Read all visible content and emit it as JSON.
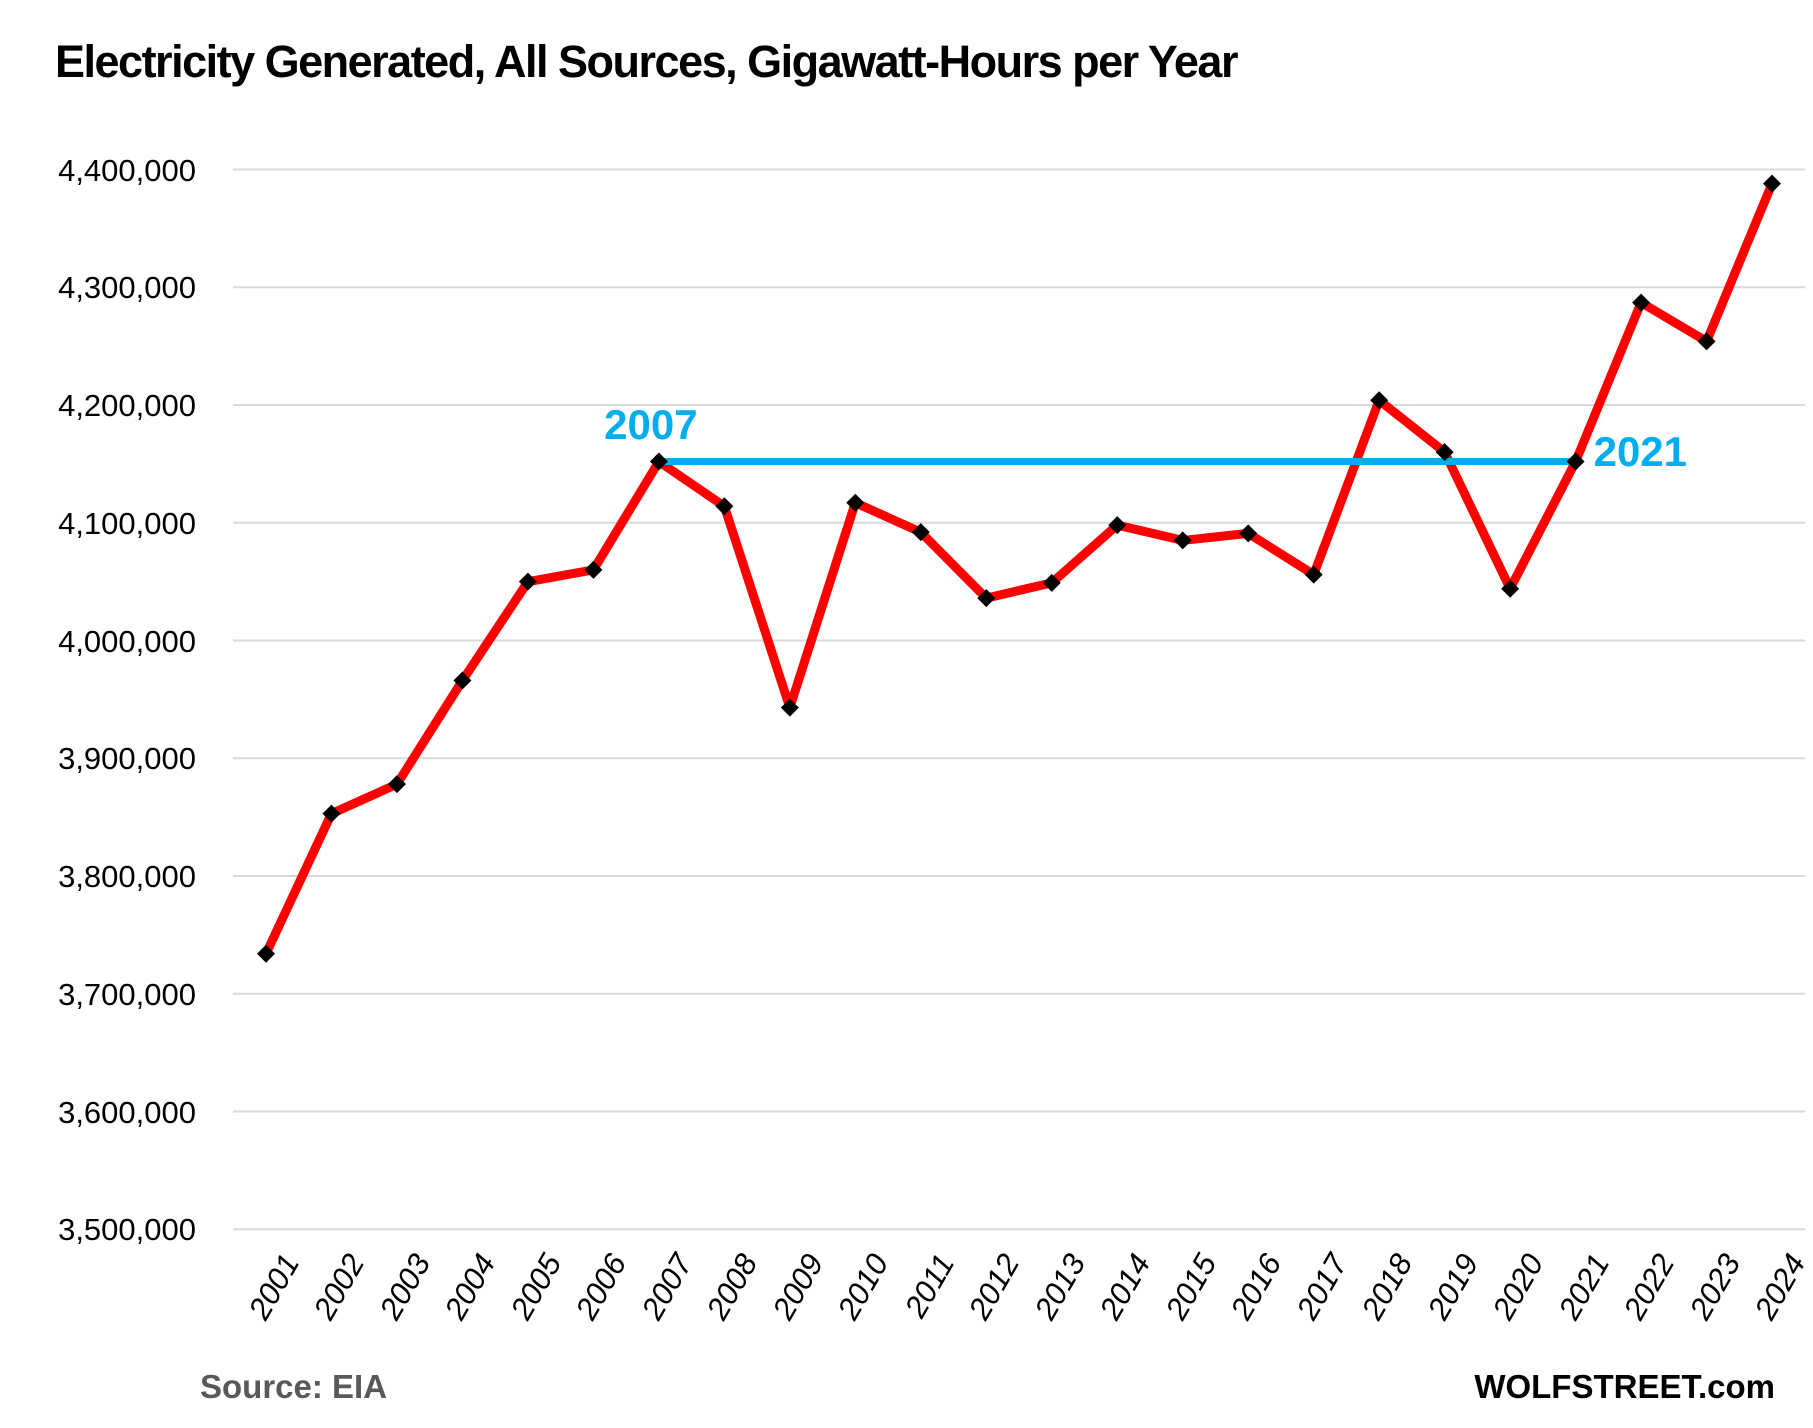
{
  "title": "Electricity Generated, All Sources, Gigawatt-Hours per Year",
  "source_label": "Source: EIA",
  "watermark": "WOLFSTREET.com",
  "annotations": {
    "start_label": "2007",
    "end_label": "2021",
    "start_year": 2007,
    "end_year": 2021,
    "line_value": 4152000
  },
  "colors": {
    "series": "#FF0000",
    "marker": "#000000",
    "annotation": "#00AEEF",
    "gridline": "#D9D9D9",
    "source_text": "#595959",
    "title_text": "#000000"
  },
  "chart_data": {
    "type": "line",
    "title": "Electricity Generated, All Sources, Gigawatt-Hours per Year",
    "xlabel": "",
    "ylabel": "Gigawatt-Hours per Year",
    "x": [
      2001,
      2002,
      2003,
      2004,
      2005,
      2006,
      2007,
      2008,
      2009,
      2010,
      2011,
      2012,
      2013,
      2014,
      2015,
      2016,
      2017,
      2018,
      2019,
      2020,
      2021,
      2022,
      2023,
      2024
    ],
    "values": [
      3734000,
      3853000,
      3878000,
      3966000,
      4050000,
      4060000,
      4152000,
      4114000,
      3943000,
      4117000,
      4092000,
      4036000,
      4049000,
      4098000,
      4085000,
      4091000,
      4056000,
      4204000,
      4160000,
      4044000,
      4152000,
      4287000,
      4254000,
      4388000
    ],
    "ylim": [
      3500000,
      4400000
    ],
    "ytick_step": 100000,
    "grid": "horizontal",
    "legend": "none",
    "marker": "diamond",
    "annotation_line": {
      "from_year": 2007,
      "to_year": 2021,
      "value": 4152000
    }
  }
}
